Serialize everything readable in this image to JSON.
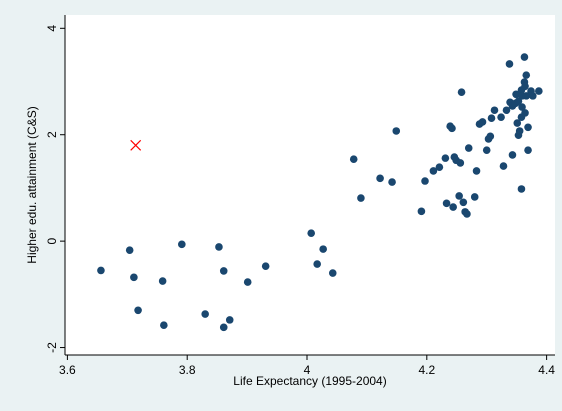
{
  "chart_data": {
    "type": "scatter",
    "xlabel": "Life Expectancy (1995-2004)",
    "ylabel": "Higher edu. attainment (C&S)",
    "xlim": [
      3.596,
      4.414
    ],
    "ylim": [
      -2.14,
      4.25
    ],
    "xticks": [
      3.6,
      3.8,
      4,
      4.2,
      4.4
    ],
    "yticks": [
      -2,
      0,
      2,
      4
    ],
    "grid": false,
    "series": [
      {
        "color": "#1a476f",
        "marker": "circle",
        "x": [
          3.656,
          3.704,
          3.711,
          3.718,
          3.759,
          3.761,
          3.791,
          3.83,
          3.853,
          3.861,
          3.861,
          3.871,
          3.901,
          3.931,
          4.007,
          4.017,
          4.027,
          4.043,
          4.078,
          4.09,
          4.122,
          4.142,
          4.149,
          4.191,
          4.197,
          4.211,
          4.221,
          4.231,
          4.233,
          4.239,
          4.242,
          4.244,
          4.246,
          4.249,
          4.254,
          4.256,
          4.258,
          4.261,
          4.264,
          4.267,
          4.27,
          4.28,
          4.283,
          4.288,
          4.293,
          4.3,
          4.303,
          4.306,
          4.308,
          4.313,
          4.324,
          4.328,
          4.333,
          4.338,
          4.339,
          4.343,
          4.343,
          4.348,
          4.349,
          4.351,
          4.353,
          4.353,
          4.355,
          4.358,
          4.358,
          4.359,
          4.359,
          4.363,
          4.358,
          4.364,
          4.366,
          4.364,
          4.363,
          4.366,
          4.369,
          4.369,
          4.374,
          4.377,
          4.387
        ],
        "y": [
          -0.55,
          -0.17,
          -0.68,
          -1.3,
          -0.75,
          -1.58,
          -0.06,
          -1.37,
          -0.11,
          -1.62,
          -0.56,
          -1.48,
          -0.77,
          -0.47,
          0.15,
          -0.43,
          -0.15,
          -0.6,
          1.54,
          0.81,
          1.18,
          1.11,
          2.07,
          0.56,
          1.13,
          1.32,
          1.39,
          1.56,
          0.71,
          2.16,
          2.12,
          0.64,
          1.58,
          1.52,
          0.85,
          1.47,
          2.8,
          0.73,
          0.55,
          0.51,
          1.75,
          0.83,
          1.32,
          2.2,
          2.24,
          1.71,
          1.92,
          1.97,
          2.31,
          2.46,
          2.33,
          1.41,
          2.46,
          3.33,
          2.61,
          1.62,
          2.54,
          2.59,
          2.76,
          2.22,
          1.99,
          2.63,
          2.07,
          2.33,
          2.84,
          2.52,
          2.73,
          2.99,
          0.98,
          2.41,
          2.73,
          2.91,
          3.46,
          3.12,
          2.14,
          1.71,
          2.82,
          2.73,
          2.82
        ]
      },
      {
        "color": "#ff0000",
        "marker": "x",
        "x": [
          3.714
        ],
        "y": [
          1.8
        ]
      }
    ]
  }
}
